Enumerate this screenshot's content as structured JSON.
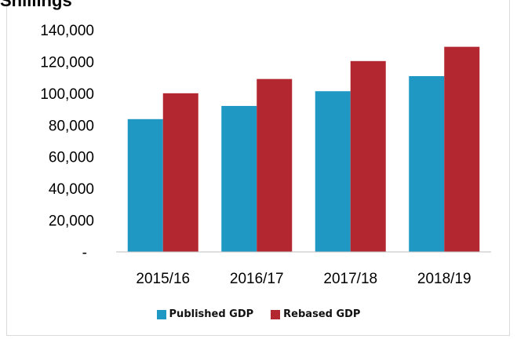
{
  "chart_data": {
    "type": "bar",
    "title": "Shillings",
    "categories": [
      "2015/16",
      "2016/17",
      "2017/18",
      "2018/19"
    ],
    "series": [
      {
        "name": "Published GDP",
        "color": "#1f98c4",
        "values": [
          83700,
          92000,
          101300,
          110800
        ]
      },
      {
        "name": "Rebased GDP",
        "color": "#b32830",
        "values": [
          100000,
          109000,
          120300,
          129300
        ]
      }
    ],
    "yticks": [
      "-",
      "20,000",
      "40,000",
      "60,000",
      "80,000",
      "100,000",
      "120,000",
      "140,000"
    ],
    "ylim": [
      0,
      140000
    ],
    "grid": false,
    "legend_position": "bottom"
  }
}
